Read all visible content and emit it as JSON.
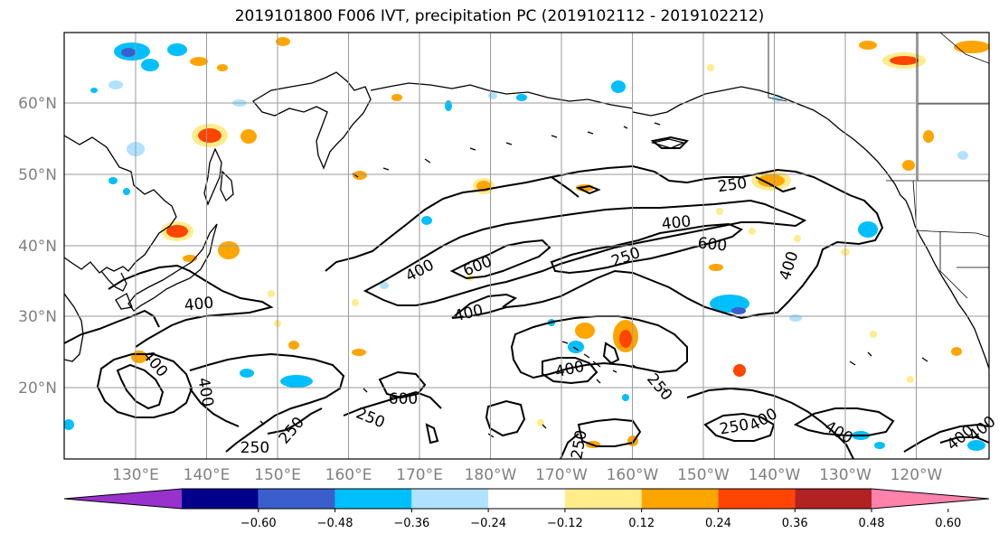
{
  "title": "2019101800 F006 IVT, precipitation PC (2019102112 - 2019102212)",
  "map": {
    "lat_ticks": [
      "20°N",
      "30°N",
      "40°N",
      "50°N",
      "60°N"
    ],
    "lon_ticks": [
      "130°E",
      "140°E",
      "150°E",
      "160°E",
      "170°E",
      "180°W",
      "170°W",
      "160°W",
      "150°W",
      "140°W",
      "130°W",
      "120°W"
    ],
    "contour_levels": [
      "250",
      "400",
      "600"
    ],
    "contour_labels": [
      "250",
      "400",
      "600",
      "400",
      "600",
      "250",
      "400",
      "400",
      "600",
      "250",
      "400",
      "400",
      "400",
      "250",
      "250",
      "400",
      "400",
      "250",
      "400",
      "250",
      "250",
      "400",
      "400"
    ]
  },
  "colorbar": {
    "tick_labels": [
      "−0.60",
      "−0.48",
      "−0.36",
      "−0.24",
      "−0.12",
      "0.12",
      "0.24",
      "0.36",
      "0.48",
      "0.60"
    ],
    "colors": [
      "#9932cc",
      "#00008b",
      "#3a5fcd",
      "#00bfff",
      "#b0e2ff",
      "#ffffff",
      "#ffec8b",
      "#ffa500",
      "#ff4500",
      "#b22222",
      "#ff82ab"
    ]
  },
  "precip_colors": {
    "neg_weak": "#00bfff",
    "neg_light": "#b0e2ff",
    "neg_mid": "#3a5fcd",
    "pos_light": "#ffec8b",
    "pos_mid": "#ffa500",
    "pos_strong": "#ff4500"
  }
}
